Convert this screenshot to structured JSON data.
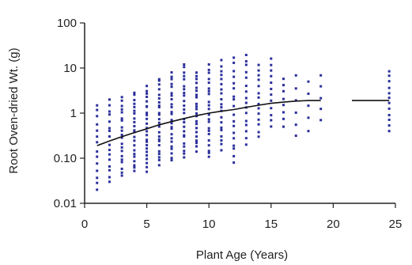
{
  "chart_data": {
    "type": "scatter",
    "title": "",
    "xlabel": "Plant Age (Years)",
    "ylabel": "Root Oven-dried Wt. (g)",
    "xlim": [
      0,
      25
    ],
    "ylim": [
      0.01,
      100
    ],
    "y_scale": "log",
    "grid": false,
    "legend": "none",
    "x_ticks": [
      {
        "value": 0,
        "label": "0"
      },
      {
        "value": 5,
        "label": "5"
      },
      {
        "value": 10,
        "label": "10"
      },
      {
        "value": 15,
        "label": "15"
      },
      {
        "value": 20,
        "label": "20"
      },
      {
        "value": 25,
        "label": "25"
      }
    ],
    "y_ticks": [
      {
        "value": 0.01,
        "label": "0.01"
      },
      {
        "value": 0.1,
        "label": "0.10"
      },
      {
        "value": 1,
        "label": "1"
      },
      {
        "value": 10,
        "label": "10"
      },
      {
        "value": 100,
        "label": "100"
      }
    ],
    "marker_color": "#2a2f9a",
    "trend_color": "#111111",
    "point_columns": [
      {
        "x": 1,
        "min": 0.02,
        "max": 1.6,
        "n": 14
      },
      {
        "x": 2,
        "min": 0.03,
        "max": 2.0,
        "n": 16
      },
      {
        "x": 3,
        "min": 0.04,
        "max": 2.3,
        "n": 20
      },
      {
        "x": 4,
        "min": 0.05,
        "max": 3.0,
        "n": 22
      },
      {
        "x": 5,
        "min": 0.05,
        "max": 4.0,
        "n": 24
      },
      {
        "x": 6,
        "min": 0.07,
        "max": 6.0,
        "n": 24
      },
      {
        "x": 7,
        "min": 0.09,
        "max": 8.0,
        "n": 24
      },
      {
        "x": 8,
        "min": 0.1,
        "max": 12.0,
        "n": 24
      },
      {
        "x": 9,
        "min": 0.14,
        "max": 8.0,
        "n": 22
      },
      {
        "x": 10,
        "min": 0.1,
        "max": 12.0,
        "n": 22
      },
      {
        "x": 11,
        "min": 0.15,
        "max": 15.0,
        "n": 20
      },
      {
        "x": 12,
        "min": 0.08,
        "max": 17.0,
        "n": 18
      },
      {
        "x": 13,
        "min": 0.2,
        "max": 20.0,
        "n": 16
      },
      {
        "x": 14,
        "min": 0.3,
        "max": 12.0,
        "n": 14
      },
      {
        "x": 15,
        "min": 0.5,
        "max": 17.0,
        "n": 12
      },
      {
        "x": 16,
        "min": 0.5,
        "max": 6.0,
        "n": 8
      },
      {
        "x": 17,
        "min": 0.3,
        "max": 7.0,
        "n": 6
      },
      {
        "x": 18,
        "min": 0.4,
        "max": 5.0,
        "n": 5
      },
      {
        "x": 19,
        "min": 0.7,
        "max": 7.0,
        "n": 5
      },
      {
        "x": 24.5,
        "min": 0.4,
        "max": 9.0,
        "n": 12
      }
    ],
    "trend": {
      "x": [
        1,
        2,
        3,
        4,
        5,
        6,
        7,
        8,
        9,
        10,
        11,
        12,
        13,
        14,
        15,
        16,
        17,
        18,
        19
      ],
      "y": [
        0.19,
        0.24,
        0.3,
        0.37,
        0.45,
        0.55,
        0.65,
        0.76,
        0.88,
        1.0,
        1.1,
        1.2,
        1.35,
        1.5,
        1.65,
        1.75,
        1.85,
        1.9,
        1.9
      ],
      "segment2_x": [
        21.5,
        24.5
      ],
      "segment2_y": [
        1.9,
        1.9
      ]
    }
  }
}
